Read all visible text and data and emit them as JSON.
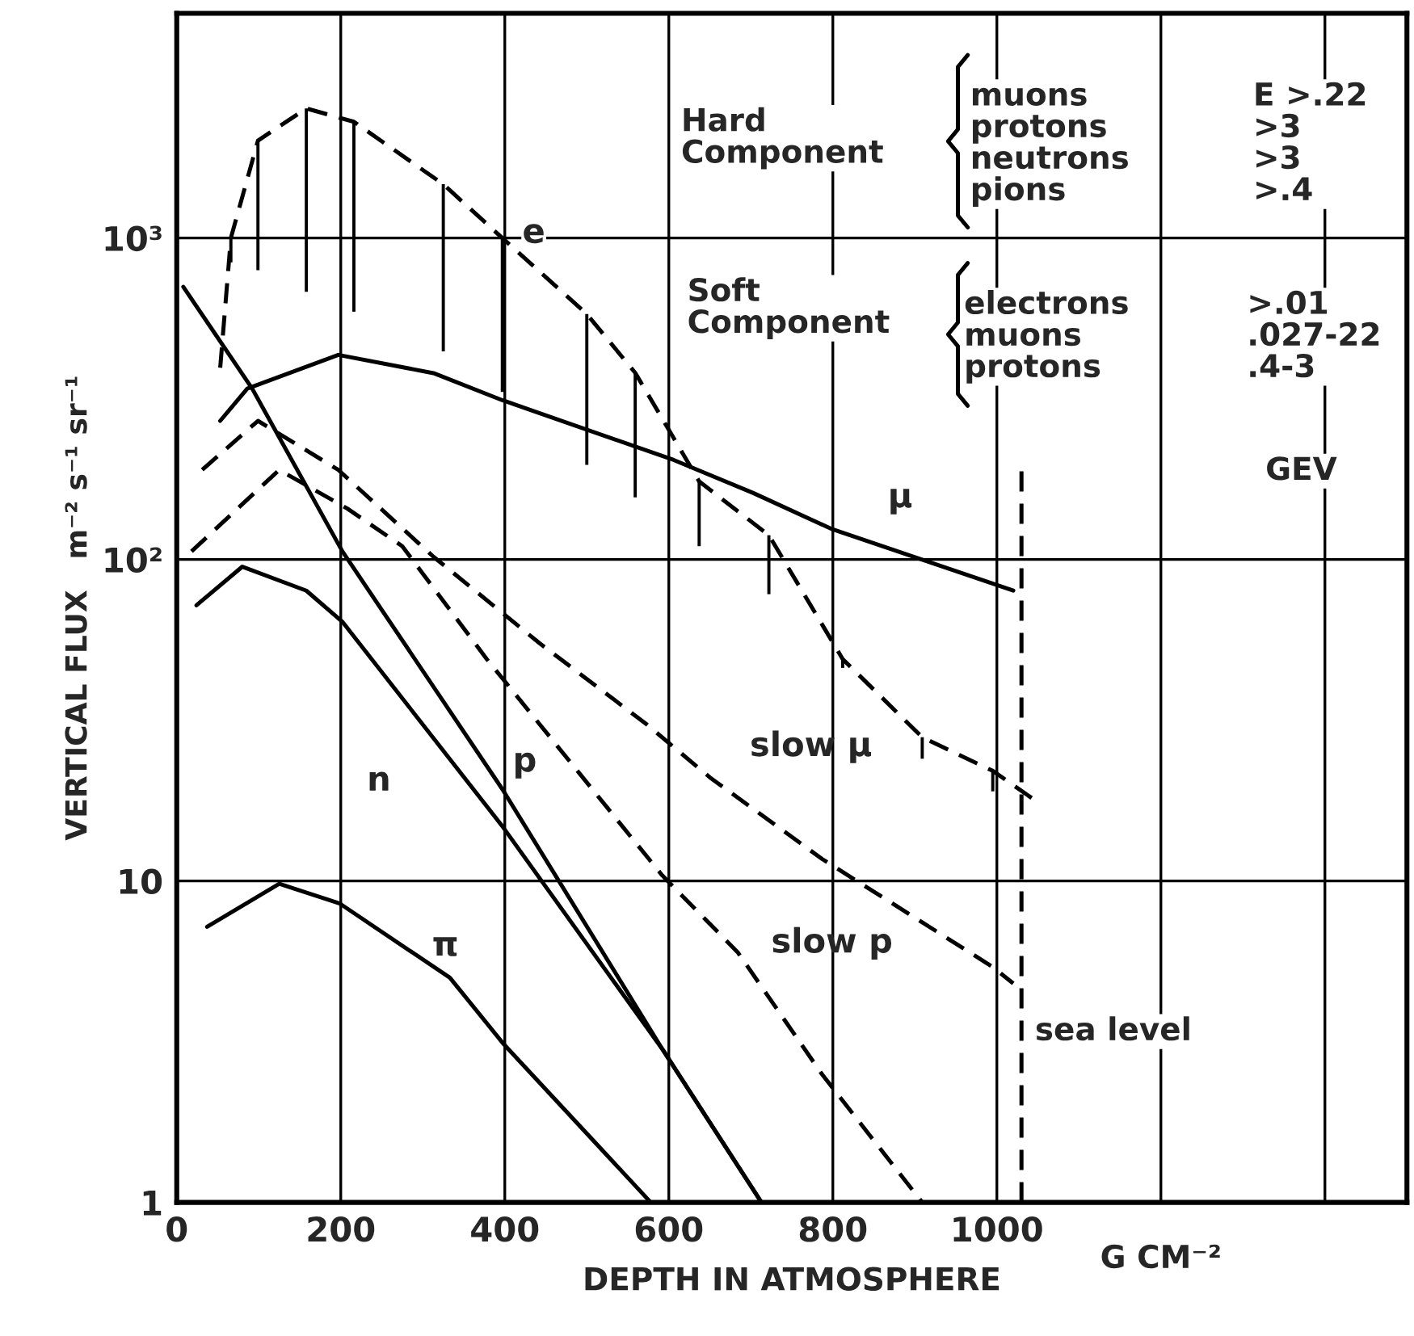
{
  "chart_data": {
    "type": "line",
    "xlabel": "DEPTH IN ATMOSPHERE",
    "ylabel": "VERTICAL FLUX   m⁻² s⁻¹ sr⁻¹",
    "log": "y",
    "grid": true,
    "xlim": [
      0,
      1500
    ],
    "xticks": [
      0,
      200,
      400,
      600,
      800,
      1000,
      {
        "value": 1200,
        "label": null
      },
      {
        "value": 1400,
        "label": null
      }
    ],
    "ylim": [
      1,
      5000
    ],
    "yticks": [
      1,
      10,
      {
        "value": 100,
        "label": "10²"
      },
      {
        "value": 1000,
        "label": "10³"
      }
    ],
    "series": [
      {
        "name": "e",
        "color": "#000000",
        "line_style": "dashed",
        "x": [
          53,
          66,
          99,
          158,
          216,
          325,
          397,
          500,
          559,
          637,
          722,
          812,
          909,
          995,
          1044
        ],
        "values": [
          395,
          1000,
          2010,
          2530,
          2300,
          1470,
          1000,
          580,
          381,
          175,
          119,
          49,
          28,
          22,
          18
        ],
        "errors": [
          null,
          [
            840,
            1000
          ],
          [
            794,
            2010
          ],
          [
            680,
            2530
          ],
          [
            590,
            2300
          ],
          [
            444,
            1470
          ],
          [
            332,
            1000
          ],
          [
            197,
            580
          ],
          [
            156,
            381
          ],
          [
            110,
            175
          ],
          [
            78,
            119
          ],
          [
            46,
            49
          ],
          [
            24,
            28
          ],
          [
            19,
            22
          ],
          null
        ]
      },
      {
        "name": "μ",
        "color": "#000000",
        "line_style": "solid",
        "x": [
          53,
          86,
          197,
          313,
          397,
          606,
          703,
          800,
          1020
        ],
        "values": [
          270,
          340,
          433,
          380,
          313,
          204,
          161,
          124,
          80
        ]
      },
      {
        "name": "p",
        "color": "#000000",
        "line_style": "solid",
        "x": [
          8,
          92,
          202,
          397,
          592,
          713
        ],
        "values": [
          705,
          340,
          106,
          19.3,
          3.0,
          1
        ]
      },
      {
        "name": "n",
        "color": "#000000",
        "line_style": "solid",
        "x": [
          24,
          80,
          158,
          202,
          397,
          592,
          713
        ],
        "values": [
          72,
          95,
          80,
          64,
          14.8,
          3.0,
          1
        ]
      },
      {
        "name": "π",
        "color": "#000000",
        "line_style": "solid",
        "x": [
          37,
          125,
          199,
          333,
          399,
          578
        ],
        "values": [
          7.2,
          9.8,
          8.5,
          5.0,
          3.1,
          1
        ]
      },
      {
        "name": "slow μ",
        "color": "#000000",
        "line_style": "dashed",
        "x": [
          31,
          99,
          197,
          313,
          442,
          573,
          650,
          787,
          995,
          1020
        ],
        "values": [
          190,
          270,
          190,
          102,
          55,
          30.7,
          21,
          11.7,
          5.4,
          4.8
        ]
      },
      {
        "name": "slow p",
        "color": "#000000",
        "line_style": "dashed",
        "x": [
          18,
          125,
          208,
          275,
          378,
          592,
          684,
          787,
          909
        ],
        "values": [
          106,
          190,
          144,
          110,
          49,
          10.4,
          6.0,
          2.5,
          1
        ]
      }
    ],
    "ref_lines": [
      {
        "axis": "x",
        "value": 1030,
        "label": "sea level",
        "line_style": "dashed",
        "color": "#000000"
      }
    ],
    "annotations": [
      "G CM⁻²",
      "Hard\nComponent",
      "muons\nprotons\nneutrons\npions",
      "E >.22\n>3\n>3\n>.4",
      "Soft\nComponent",
      "electrons\nmuons\nprotons",
      ">.01\n.027-22\n.4-3",
      "GEV"
    ]
  }
}
